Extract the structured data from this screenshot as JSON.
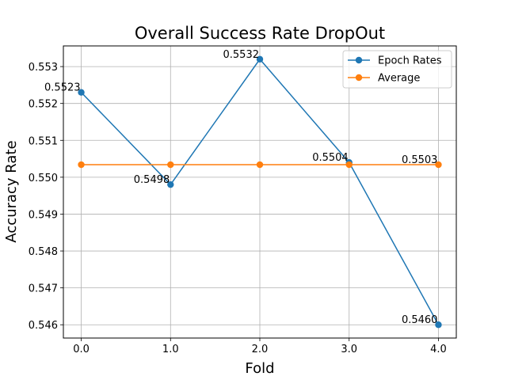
{
  "chart_data": {
    "type": "line",
    "title": "Overall Success Rate DropOut",
    "xlabel": "Fold",
    "ylabel": "Accuracy Rate",
    "x": [
      0,
      1,
      2,
      3,
      4
    ],
    "x_tick_labels": [
      "0.0",
      "1.0",
      "2.0",
      "3.0",
      "4.0"
    ],
    "y_tick_values": [
      0.546,
      0.547,
      0.548,
      0.549,
      0.55,
      0.551,
      0.552,
      0.553
    ],
    "y_tick_labels": [
      "0.546",
      "0.547",
      "0.548",
      "0.549",
      "0.550",
      "0.551",
      "0.552",
      "0.553"
    ],
    "xlim": [
      -0.2,
      4.2
    ],
    "ylim": [
      0.54564,
      0.55356
    ],
    "grid": true,
    "legend_position": "top-right",
    "series": [
      {
        "name": "Epoch Rates",
        "color": "#1f77b4",
        "values": [
          0.5523,
          0.5498,
          0.5532,
          0.5504,
          0.546
        ],
        "labels": [
          "0.5523",
          "0.5498",
          "0.5532",
          "0.5504",
          "0.5460"
        ]
      },
      {
        "name": "Average",
        "color": "#ff7f0e",
        "values": [
          0.55034,
          0.55034,
          0.55034,
          0.55034,
          0.55034
        ],
        "labels": [
          "",
          "",
          "",
          "",
          "0.5503"
        ]
      }
    ]
  }
}
